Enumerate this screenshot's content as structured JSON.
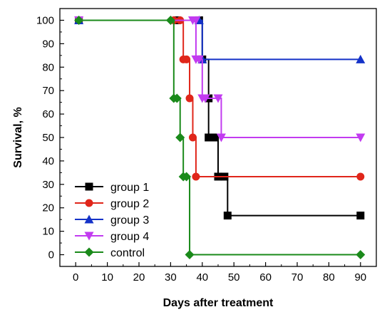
{
  "chart_data": {
    "type": "line",
    "title": "",
    "xlabel": "Days after treatment",
    "ylabel": "Survival, %",
    "xlim": [
      -5,
      95
    ],
    "ylim": [
      -5,
      105
    ],
    "x_ticks": [
      0,
      10,
      20,
      30,
      40,
      50,
      60,
      70,
      80,
      90
    ],
    "y_ticks": [
      0,
      10,
      20,
      30,
      40,
      50,
      60,
      70,
      80,
      90,
      100
    ],
    "grid": false,
    "step": "post",
    "legend_position": "lower-left",
    "series": [
      {
        "name": "group 1",
        "color": "#000000",
        "marker": "square",
        "points": [
          [
            1,
            100
          ],
          [
            32,
            100
          ],
          [
            39,
            100
          ],
          [
            40,
            83.3
          ],
          [
            42,
            66.7
          ],
          [
            42,
            50
          ],
          [
            44,
            50
          ],
          [
            45,
            33.3
          ],
          [
            47,
            33.3
          ],
          [
            48,
            16.7
          ],
          [
            90,
            16.7
          ]
        ]
      },
      {
        "name": "group 2",
        "color": "#e0261a",
        "marker": "circle",
        "points": [
          [
            1,
            100
          ],
          [
            31,
            100
          ],
          [
            33,
            100
          ],
          [
            34,
            83.3
          ],
          [
            35,
            83.3
          ],
          [
            36,
            66.7
          ],
          [
            37,
            50
          ],
          [
            38,
            33.3
          ],
          [
            90,
            33.3
          ]
        ]
      },
      {
        "name": "group 3",
        "color": "#1432c8",
        "marker": "triangle-up",
        "points": [
          [
            1,
            100
          ],
          [
            39,
            100
          ],
          [
            40,
            83.3
          ],
          [
            90,
            83.3
          ]
        ]
      },
      {
        "name": "group 4",
        "color": "#c23bf0",
        "marker": "triangle-down",
        "points": [
          [
            1,
            100
          ],
          [
            37,
            100
          ],
          [
            38,
            100
          ],
          [
            38,
            83.3
          ],
          [
            39,
            83.3
          ],
          [
            40,
            66.7
          ],
          [
            41,
            66.7
          ],
          [
            45,
            66.7
          ],
          [
            46,
            50
          ],
          [
            90,
            50
          ]
        ]
      },
      {
        "name": "control",
        "color": "#1a8a1a",
        "marker": "diamond",
        "points": [
          [
            1,
            100
          ],
          [
            30,
            100
          ],
          [
            31,
            66.7
          ],
          [
            32,
            66.7
          ],
          [
            33,
            50
          ],
          [
            34,
            33.3
          ],
          [
            35,
            33.3
          ],
          [
            36,
            0
          ],
          [
            90,
            0
          ]
        ]
      }
    ]
  }
}
